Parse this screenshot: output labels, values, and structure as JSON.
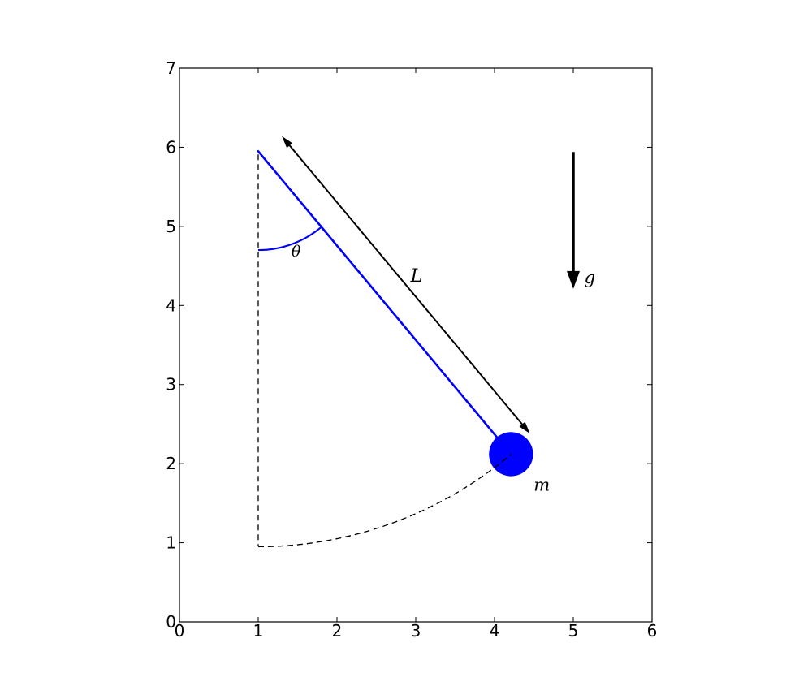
{
  "figure": {
    "background": "#ffffff",
    "colors": {
      "pendulum": "#0000ff",
      "axes": "#000000",
      "annotation": "#000000",
      "dashed": "#000000"
    }
  },
  "chart_data": {
    "type": "diagram",
    "title": "",
    "xlabel": "",
    "ylabel": "",
    "xlim": [
      0,
      6
    ],
    "ylim": [
      0,
      7
    ],
    "x_ticks": [
      "0",
      "1",
      "2",
      "3",
      "4",
      "5",
      "6"
    ],
    "y_ticks": [
      "0",
      "1",
      "2",
      "3",
      "4",
      "5",
      "6",
      "7"
    ],
    "grid": false,
    "pendulum": {
      "pivot": [
        1.0,
        5.95
      ],
      "length_units": 5.0,
      "angle_from_vertical_deg": 40,
      "bob_center": [
        4.21,
        2.12
      ],
      "bob_radius_units": 0.28,
      "equilibrium_line": {
        "from": [
          1.0,
          5.91
        ],
        "to": [
          1.0,
          0.965
        ]
      },
      "swing_arc": {
        "center": [
          1.0,
          5.95
        ],
        "radius": 5.0,
        "start_angle_deg": 0,
        "end_angle_deg": 40
      },
      "theta_arc": {
        "center": [
          1.0,
          5.95
        ],
        "radius": 1.25,
        "start_angle_deg": 0,
        "end_angle_deg": 40
      }
    },
    "length_arrow": {
      "from": [
        1.3,
        6.14
      ],
      "to": [
        4.45,
        2.38
      ],
      "double_headed": true
    },
    "gravity_arrow": {
      "from": [
        5.0,
        5.94
      ],
      "to": [
        5.0,
        4.21
      ]
    },
    "annotations": [
      {
        "id": "theta",
        "text": "θ",
        "x": 1.48,
        "y": 4.62,
        "font_px": 19
      },
      {
        "id": "L",
        "text": "L",
        "x": 3.01,
        "y": 4.3,
        "font_px": 22
      },
      {
        "id": "m",
        "text": "m",
        "x": 4.6,
        "y": 1.66,
        "font_px": 21
      },
      {
        "id": "g",
        "text": "g",
        "x": 5.21,
        "y": 4.28,
        "font_px": 21
      }
    ]
  }
}
